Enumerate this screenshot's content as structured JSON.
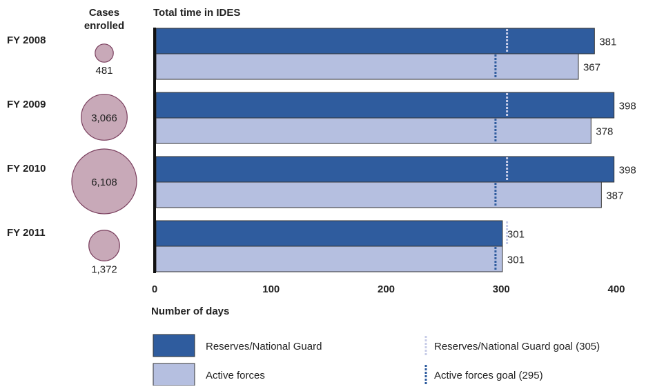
{
  "chart_data": {
    "type": "bar",
    "orientation": "horizontal",
    "title": "Total time in IDES",
    "xlabel": "Number of days",
    "xlim": [
      0,
      400
    ],
    "xticks": [
      0,
      100,
      200,
      300,
      400
    ],
    "bubble_column_title": "Cases enrolled",
    "categories": [
      "FY 2008",
      "FY 2009",
      "FY 2010",
      "FY 2011"
    ],
    "cases_enrolled": [
      481,
      3066,
      6108,
      1372
    ],
    "cases_enrolled_labels": [
      "481",
      "3,066",
      "6,108",
      "1,372"
    ],
    "series": [
      {
        "name": "Reserves/National Guard",
        "color": "#2f5c9e",
        "values": [
          381,
          398,
          398,
          301
        ]
      },
      {
        "name": "Active forces",
        "color": "#b5bfe0",
        "values": [
          367,
          378,
          387,
          301
        ]
      }
    ],
    "goals": [
      {
        "name": "Reserves/National Guard goal (305)",
        "value": 305,
        "color": "#c8cde8"
      },
      {
        "name": "Active forces goal (295)",
        "value": 295,
        "color": "#2f5c9e"
      }
    ],
    "legend": {
      "position": "bottom",
      "items": [
        {
          "label": "Reserves/National Guard",
          "kind": "box",
          "color": "#2f5c9e"
        },
        {
          "label": "Active forces",
          "kind": "box",
          "color": "#b5bfe0"
        },
        {
          "label": "Reserves/National Guard goal (305)",
          "kind": "dash",
          "color": "#c8cde8"
        },
        {
          "label": "Active forces goal (295)",
          "kind": "dash",
          "color": "#2f5c9e"
        }
      ]
    },
    "bubble_color": "#c8a9b8",
    "bubble_stroke": "#7a3f5e"
  }
}
